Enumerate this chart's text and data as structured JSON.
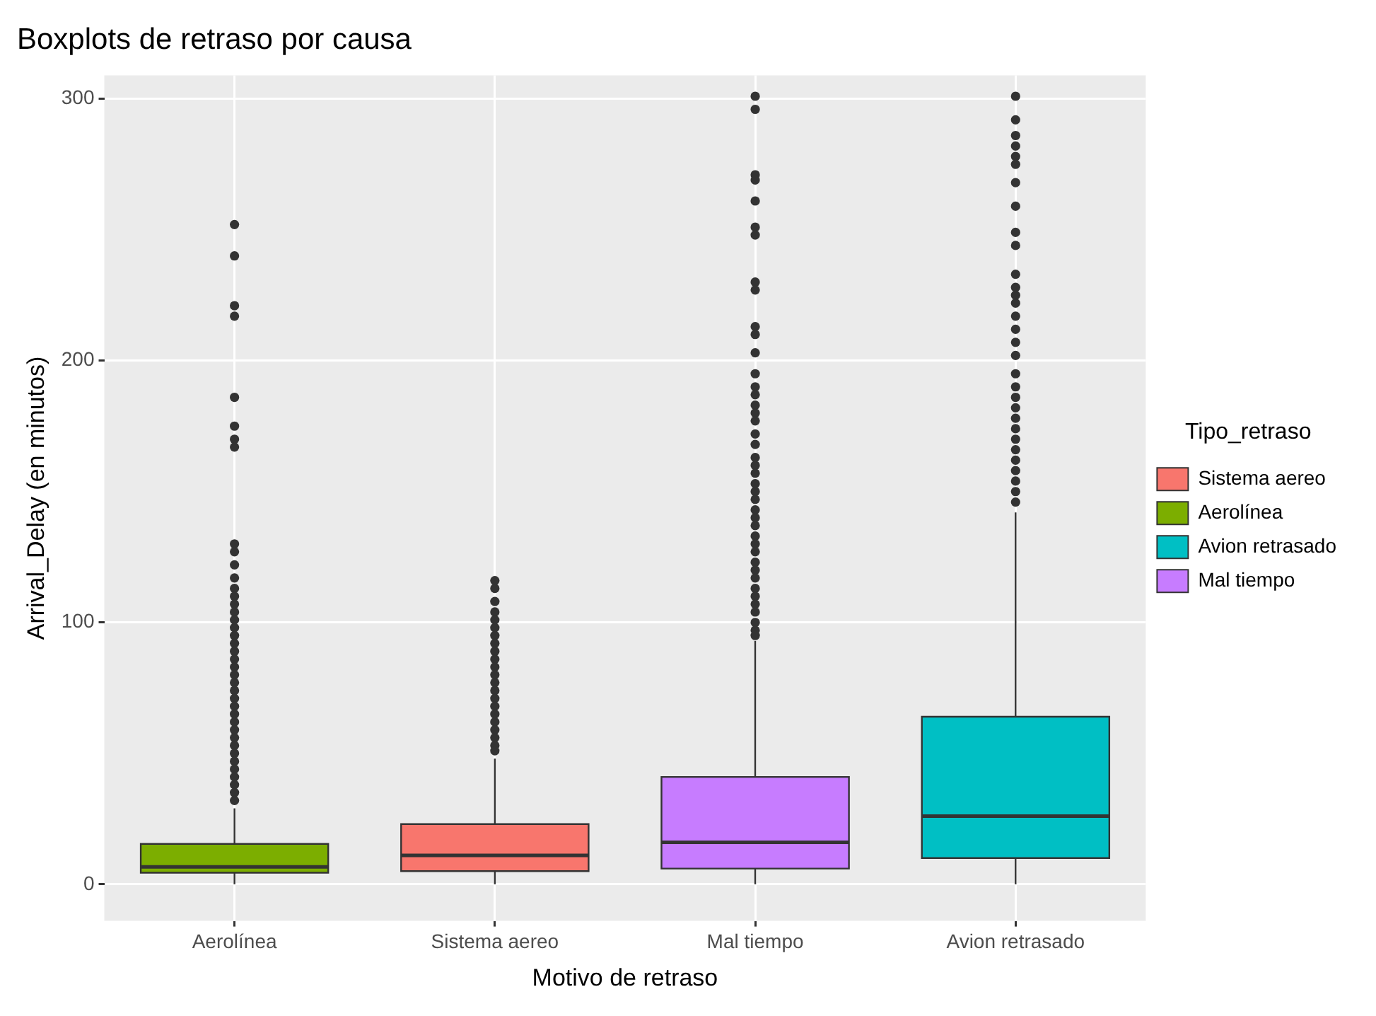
{
  "chart_data": {
    "type": "box",
    "title": "Boxplots de retraso por causa",
    "xlabel": "Motivo de retraso",
    "ylabel": "Arrival_Delay (en minutos)",
    "legend_title": "Tipo_retraso",
    "categories": [
      "Aerolínea",
      "Sistema aereo",
      "Mal tiempo",
      "Avion retrasado"
    ],
    "series": [
      {
        "name": "Sistema aereo",
        "color": "#f8766d",
        "boxes": [
          null,
          {
            "low": 0,
            "q1": 5,
            "median": 11,
            "q3": 23,
            "high": 48,
            "outliers": [
              116,
              113,
              108,
              104,
              101,
              98,
              95,
              92,
              89,
              86,
              83,
              80,
              77,
              74,
              71,
              68,
              65,
              62,
              59,
              56,
              53,
              51
            ]
          },
          null,
          null
        ]
      },
      {
        "name": "Aerolínea",
        "color": "#7cae00",
        "boxes": [
          {
            "low": 0,
            "q1": 4.4,
            "median": 6.6,
            "q3": 15.4,
            "high": 29,
            "outliers": [
              252,
              240,
              221,
              217,
              186,
              175,
              170,
              167,
              130,
              127,
              122,
              117,
              113,
              110,
              107,
              104,
              101,
              98,
              95,
              92,
              89,
              86,
              83,
              80,
              77,
              74,
              71,
              68,
              65,
              62,
              59,
              56,
              53,
              50,
              47,
              44,
              41,
              38,
              35,
              32
            ]
          },
          null,
          null,
          null
        ]
      },
      {
        "name": "Avion retrasado",
        "color": "#00bfc4",
        "boxes": [
          null,
          null,
          null,
          {
            "low": 0,
            "q1": 10,
            "median": 26,
            "q3": 64,
            "high": 142,
            "outliers": [
              301,
              292,
              286,
              282,
              278,
              275,
              268,
              259,
              249,
              244,
              233,
              228,
              225,
              222,
              217,
              212,
              207,
              202,
              195,
              190,
              186,
              182,
              178,
              174,
              170,
              166,
              162,
              158,
              154,
              150,
              146
            ]
          }
        ]
      },
      {
        "name": "Mal tiempo",
        "color": "#c77cff",
        "boxes": [
          null,
          null,
          {
            "low": 0,
            "q1": 6,
            "median": 16,
            "q3": 41,
            "high": 93,
            "outliers": [
              301,
              296,
              271,
              269,
              261,
              251,
              248,
              230,
              227,
              213,
              210,
              203,
              195,
              190,
              187,
              183,
              180,
              177,
              172,
              168,
              163,
              160,
              157,
              153,
              150,
              147,
              143,
              140,
              137,
              133,
              130,
              127,
              123,
              120,
              117,
              113,
              110,
              107,
              104,
              100,
              97,
              95
            ]
          },
          null
        ]
      }
    ],
    "ylim": [
      -14,
      309
    ],
    "yticks": [
      0,
      100,
      200,
      300
    ],
    "grid": true,
    "legend": "right"
  }
}
